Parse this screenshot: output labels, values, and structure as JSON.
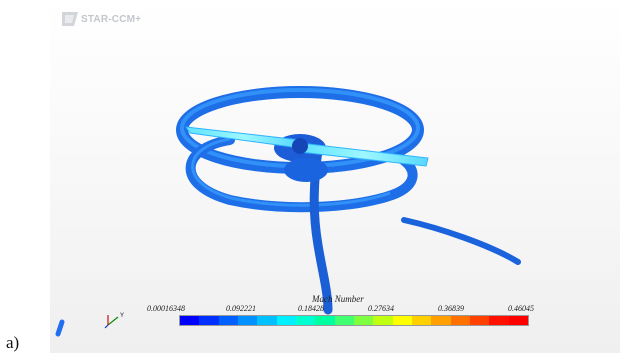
{
  "figure": {
    "panel_label": "a)"
  },
  "app": {
    "brand": "STAR-CCM+"
  },
  "legend": {
    "title": "Mach Number",
    "ticks": [
      "0.00016348",
      "0.092221",
      "0.18428",
      "0.27634",
      "0.36839",
      "0.46045"
    ],
    "colors": [
      "#0000ff",
      "#0030ff",
      "#0060ff",
      "#0090ff",
      "#00c0ff",
      "#00f0ff",
      "#00ffd0",
      "#00ffa0",
      "#40ff70",
      "#80ff40",
      "#c0ff10",
      "#ffff00",
      "#ffd000",
      "#ffa000",
      "#ff7000",
      "#ff4000",
      "#ff1000",
      "#ff0000"
    ]
  },
  "triad": {
    "axis_label": "Y"
  }
}
